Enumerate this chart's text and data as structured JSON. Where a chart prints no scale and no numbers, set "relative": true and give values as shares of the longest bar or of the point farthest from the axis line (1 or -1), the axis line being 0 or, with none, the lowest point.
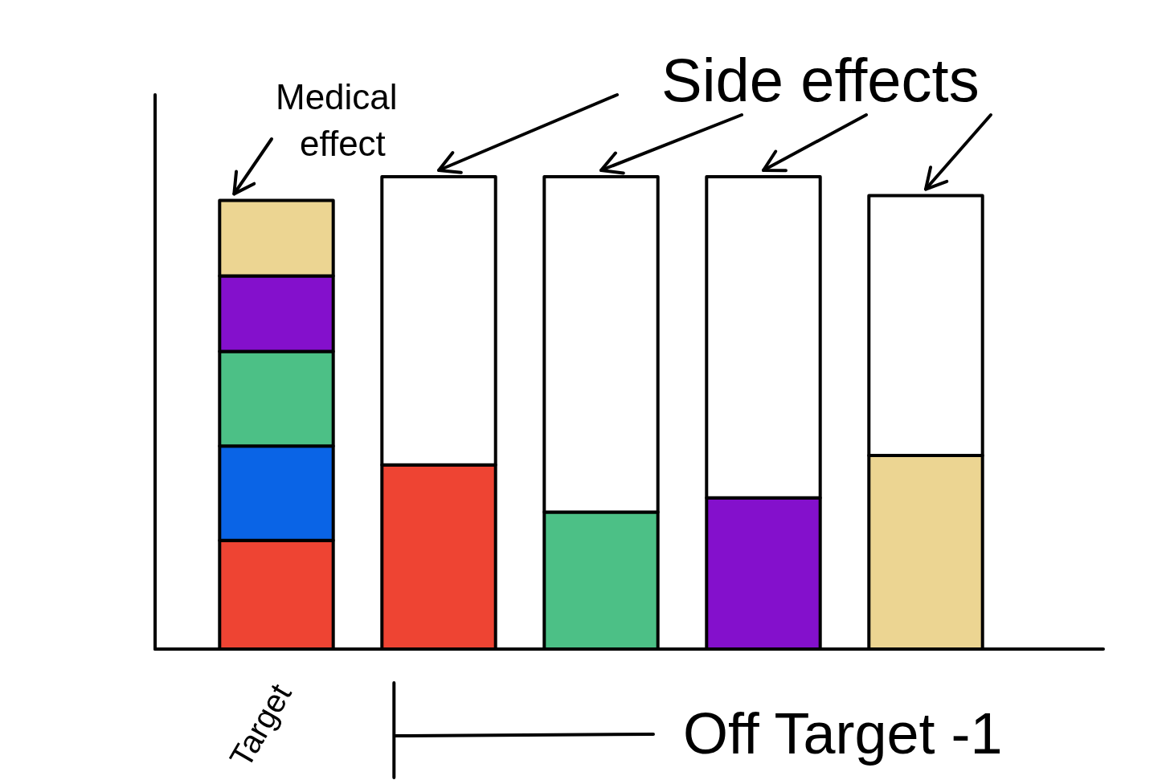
{
  "chart_data": {
    "type": "bar",
    "stacked": true,
    "relative": true,
    "categories": [
      "Target",
      null,
      null,
      null,
      null
    ],
    "series": [
      {
        "color": "#ee4433",
        "values": [
          0.23,
          0.39,
          null,
          null,
          null
        ]
      },
      {
        "color": "#0a64e6",
        "values": [
          0.2,
          null,
          null,
          null,
          null
        ]
      },
      {
        "color": "#4cc086",
        "values": [
          0.2,
          null,
          0.29,
          null,
          null
        ]
      },
      {
        "color": "#8410cc",
        "values": [
          0.16,
          null,
          null,
          0.32,
          null
        ]
      },
      {
        "color": "#ecd592",
        "values": [
          0.16,
          null,
          null,
          null,
          0.41
        ]
      },
      {
        "color": "#ffffff",
        "values": [
          null,
          0.61,
          0.71,
          0.68,
          0.55
        ]
      }
    ],
    "annotations": [
      "Medical effect",
      "Side effects",
      "Off Target -1"
    ]
  }
}
